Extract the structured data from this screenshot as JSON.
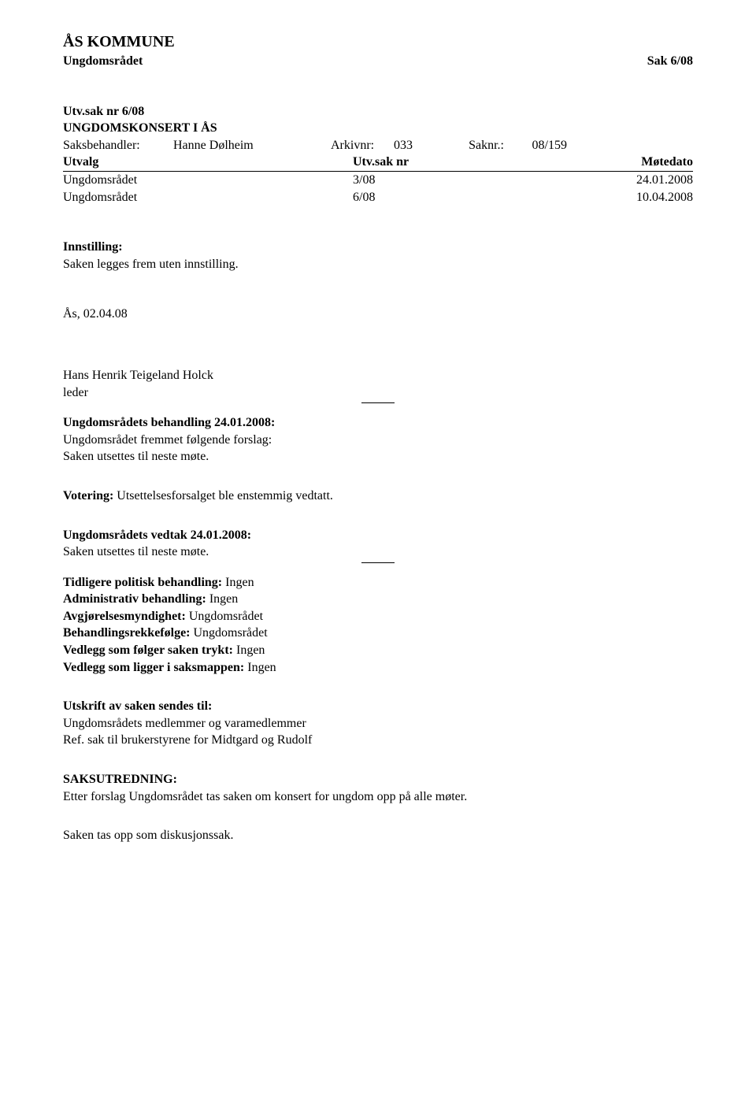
{
  "header": {
    "org": "ÅS KOMMUNE",
    "committee": "Ungdomsrådet",
    "case_header": "Sak 6/08"
  },
  "case_ref": {
    "utvsak_label": "Utv.sak nr 6/08",
    "title": "UNGDOMSKONSERT I ÅS",
    "saksbehandler_label": "Saksbehandler:",
    "saksbehandler_value": "Hanne Dølheim",
    "arkivnr_label": "Arkivnr:",
    "arkivnr_value": "033",
    "saknr_label": "Saknr.:",
    "saknr_value": "08/159"
  },
  "meeting_table": {
    "headers": {
      "utvalg": "Utvalg",
      "utvsaknr": "Utv.sak nr",
      "motedato": "Møtedato"
    },
    "rows": [
      {
        "utvalg": "Ungdomsrådet",
        "utvsaknr": "3/08",
        "motedato": "24.01.2008"
      },
      {
        "utvalg": "Ungdomsrådet",
        "utvsaknr": "6/08",
        "motedato": "10.04.2008"
      }
    ]
  },
  "innstilling": {
    "heading": "Innstilling:",
    "text": "Saken legges frem uten innstilling."
  },
  "signature": {
    "place_date": "Ås, 02.04.08",
    "name": "Hans Henrik Teigeland Holck",
    "role": "leder"
  },
  "behandling": {
    "heading": "Ungdomsrådets behandling 24.01.2008:",
    "line1": "Ungdomsrådet fremmet følgende forslag:",
    "line2": "Saken utsettes til neste møte."
  },
  "votering": {
    "label": "Votering:",
    "text": " Utsettelsesforsalget ble enstemmig vedtatt."
  },
  "vedtak": {
    "heading": "Ungdomsrådets vedtak 24.01.2008:",
    "text": "Saken utsettes til neste møte."
  },
  "metadata": {
    "items": [
      {
        "label": "Tidligere politisk behandling:",
        "value": " Ingen"
      },
      {
        "label": "Administrativ behandling:",
        "value": " Ingen"
      },
      {
        "label": "Avgjørelsesmyndighet:",
        "value": " Ungdomsrådet"
      },
      {
        "label": "Behandlingsrekkefølge:",
        "value": " Ungdomsrådet"
      },
      {
        "label": "Vedlegg som følger saken trykt:",
        "value": " Ingen"
      },
      {
        "label": "Vedlegg som ligger i saksmappen:",
        "value": " Ingen"
      }
    ]
  },
  "utskrift": {
    "heading": "Utskrift av saken sendes til:",
    "line1": "Ungdomsrådets medlemmer og varamedlemmer",
    "line2": "Ref. sak til brukerstyrene for Midtgard og Rudolf"
  },
  "saksutredning": {
    "heading": "SAKSUTREDNING:",
    "text": "Etter forslag Ungdomsrådet tas saken om konsert for ungdom opp på alle møter."
  },
  "closing": {
    "text": "Saken tas opp som diskusjonssak."
  }
}
